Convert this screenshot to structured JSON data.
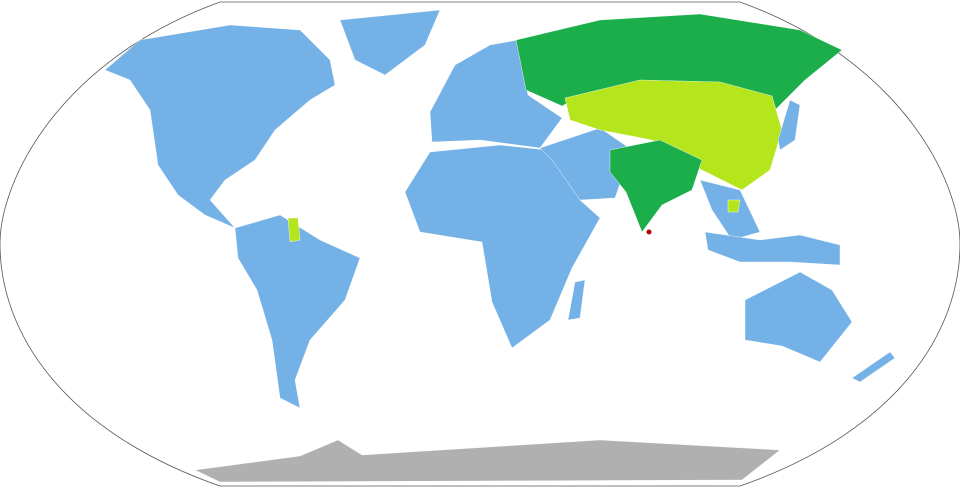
{
  "map": {
    "projection": "Robinson",
    "colors": {
      "ocean": "#ffffff",
      "outline": "#555555",
      "default_land": "#74b1e6",
      "dark_green": "#1bae4b",
      "light_green": "#b5e61d",
      "antarctica": "#b0b0b0",
      "red_marker": "#c00000"
    }
  }
}
